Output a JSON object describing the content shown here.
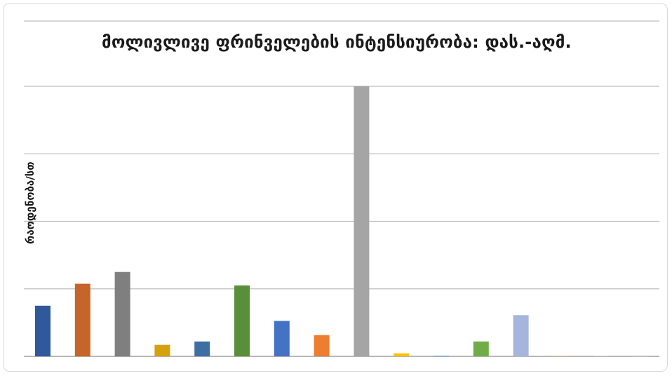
{
  "chart_data": {
    "type": "bar",
    "title": "მოლივლივე ფრინველების ინტენსიურობა: დას.-აღმ.",
    "xlabel": "",
    "ylabel": "რაოდენობა/სთ",
    "ylim": [
      0,
      8
    ],
    "grid": true,
    "legend": "none",
    "categories": [
      "",
      "",
      "",
      "",
      "",
      "",
      "",
      "",
      "",
      "",
      "",
      "",
      "",
      "",
      "",
      ""
    ],
    "values": [
      1.5,
      2.15,
      2.5,
      0.34,
      0.44,
      2.1,
      1.05,
      0.63,
      8.0,
      0.09,
      0.02,
      0.44,
      1.22,
      0.02,
      0.02,
      0.03
    ],
    "colors": [
      "#2e5a9c",
      "#c5652a",
      "#7f7f7f",
      "#d4a20c",
      "#3d6fa5",
      "#5a8f3a",
      "#4472c4",
      "#ed7d31",
      "#a5a5a5",
      "#ffc000",
      "#5b9bd5",
      "#70ad47",
      "#a5b5dd",
      "#f4b183",
      "#c9c9c9",
      "#d9d9d9"
    ]
  }
}
